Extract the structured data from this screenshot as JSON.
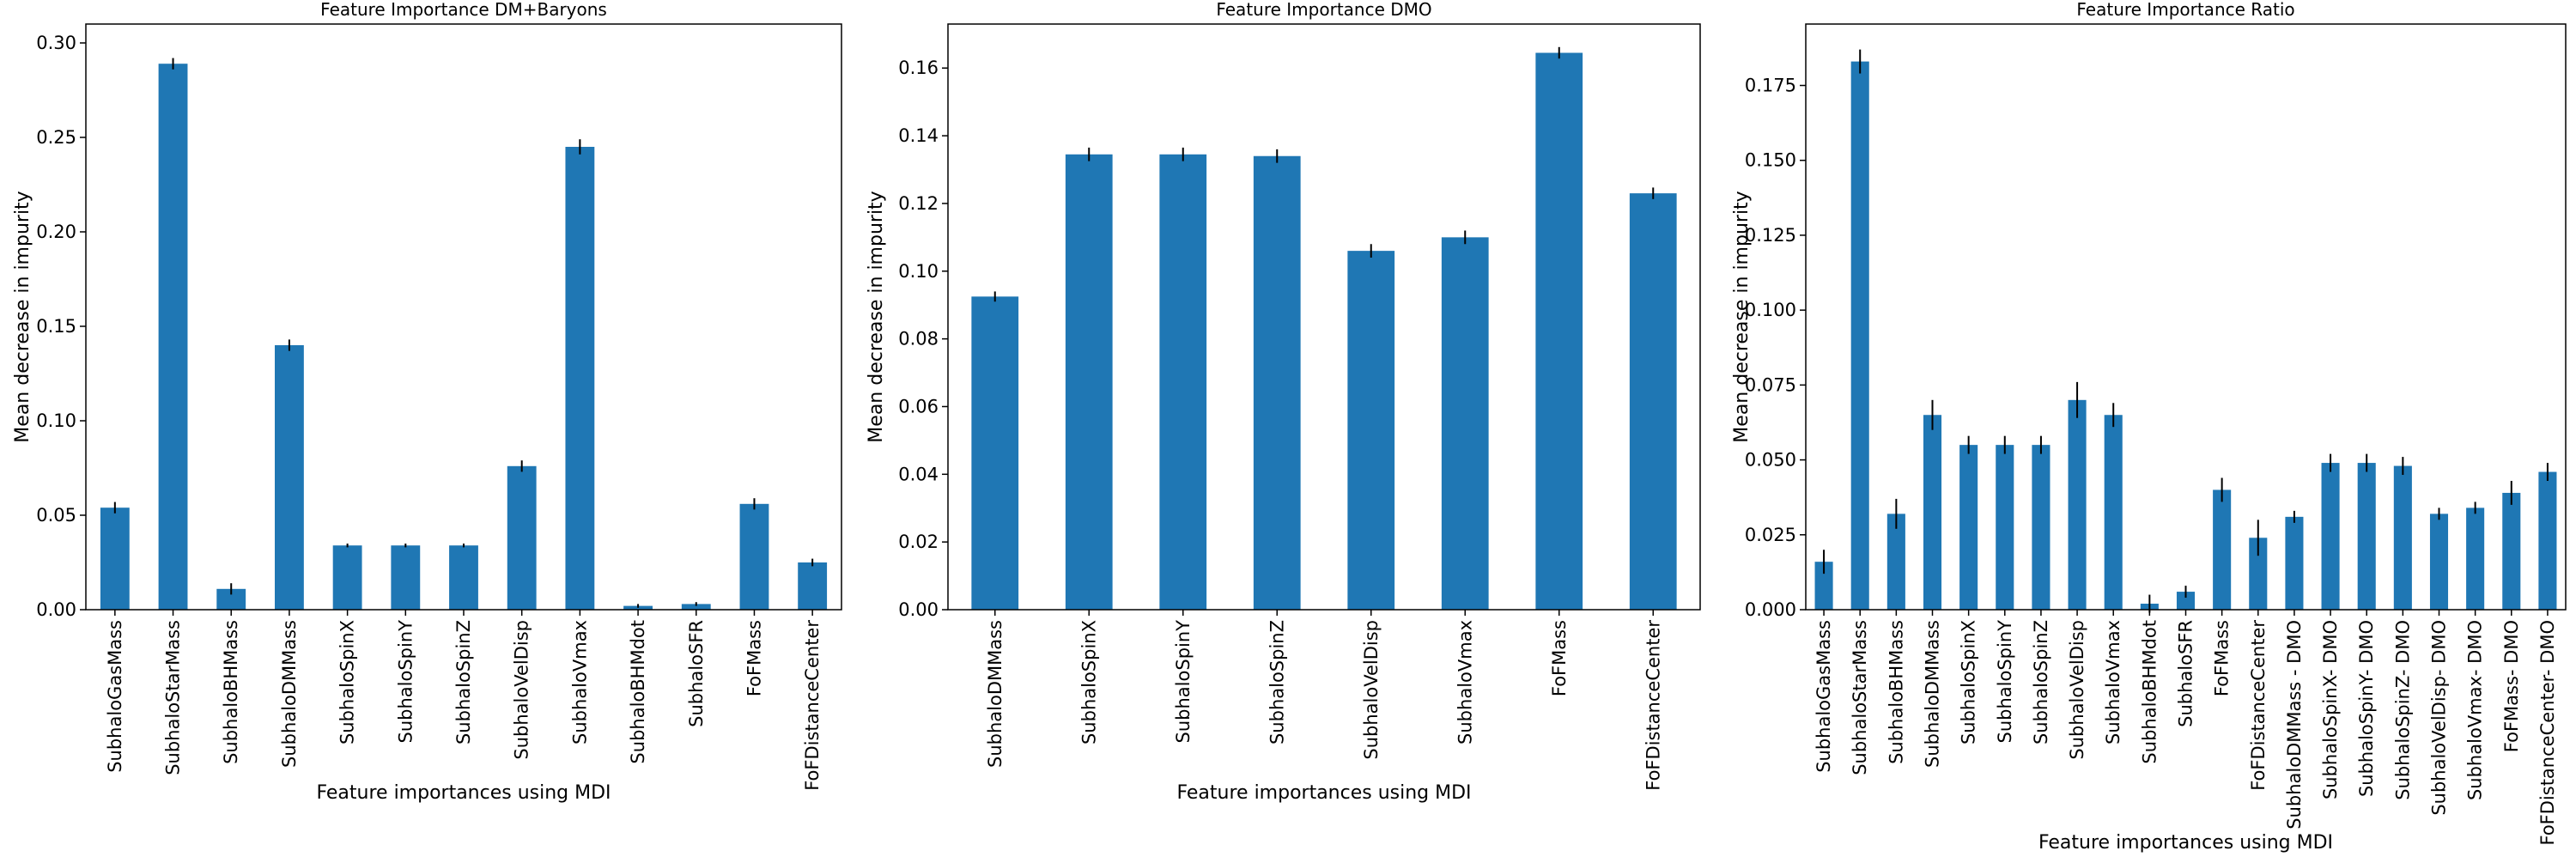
{
  "colors": {
    "bar": "#1f77b4",
    "error": "#000000",
    "axis": "#000000"
  },
  "chart_data": [
    {
      "type": "bar",
      "title": "Feature Importance DM+Baryons",
      "xlabel": "Feature importances using MDI",
      "ylabel": "Mean decrease in impurity",
      "ylim": [
        0,
        0.31
      ],
      "yticks": [
        0.0,
        0.05,
        0.1,
        0.15,
        0.2,
        0.25,
        0.3
      ],
      "ytick_labels": [
        "0.00",
        "0.05",
        "0.10",
        "0.15",
        "0.20",
        "0.25",
        "0.30"
      ],
      "grid": false,
      "categories": [
        "SubhaloGasMass",
        "SubhaloStarMass",
        "SubhaloBHMass",
        "SubhaloDMMass",
        "SubhaloSpinX",
        "SubhaloSpinY",
        "SubhaloSpinZ",
        "SubhaloVelDisp",
        "SubhaloVmax",
        "SubhaloBHMdot",
        "SubhaloSFR",
        "FoFMass",
        "FoFDistanceCenter"
      ],
      "values": [
        0.054,
        0.289,
        0.011,
        0.14,
        0.034,
        0.034,
        0.034,
        0.076,
        0.245,
        0.002,
        0.003,
        0.056,
        0.025
      ],
      "errors": [
        0.003,
        0.003,
        0.003,
        0.003,
        0.001,
        0.001,
        0.001,
        0.003,
        0.004,
        0.001,
        0.001,
        0.003,
        0.002
      ]
    },
    {
      "type": "bar",
      "title": "Feature Importance DMO",
      "xlabel": "Feature importances using MDI",
      "ylabel": "Mean decrease in impurity",
      "ylim": [
        0,
        0.173
      ],
      "yticks": [
        0.0,
        0.02,
        0.04,
        0.06,
        0.08,
        0.1,
        0.12,
        0.14,
        0.16
      ],
      "ytick_labels": [
        "0.00",
        "0.02",
        "0.04",
        "0.06",
        "0.08",
        "0.10",
        "0.12",
        "0.14",
        "0.16"
      ],
      "grid": false,
      "categories": [
        "SubhaloDMMass",
        "SubhaloSpinX",
        "SubhaloSpinY",
        "SubhaloSpinZ",
        "SubhaloVelDisp",
        "SubhaloVmax",
        "FoFMass",
        "FoFDistanceCenter"
      ],
      "values": [
        0.0925,
        0.1345,
        0.1345,
        0.134,
        0.106,
        0.11,
        0.1645,
        0.123
      ],
      "errors": [
        0.0015,
        0.002,
        0.002,
        0.002,
        0.002,
        0.002,
        0.0017,
        0.0017
      ]
    },
    {
      "type": "bar",
      "title": "Feature Importance Ratio",
      "xlabel": "Feature importances using MDI",
      "ylabel": "Mean decrease in impurity",
      "ylim": [
        0,
        0.1955
      ],
      "yticks": [
        0.0,
        0.025,
        0.05,
        0.075,
        0.1,
        0.125,
        0.15,
        0.175
      ],
      "ytick_labels": [
        "0.000",
        "0.025",
        "0.050",
        "0.075",
        "0.100",
        "0.125",
        "0.150",
        "0.175"
      ],
      "grid": false,
      "categories": [
        "SubhaloGasMass",
        "SubhaloStarMass",
        "SubhaloBHMass",
        "SubhaloDMMass",
        "SubhaloSpinX",
        "SubhaloSpinY",
        "SubhaloSpinZ",
        "SubhaloVelDisp",
        "SubhaloVmax",
        "SubhaloBHMdot",
        "SubhaloSFR",
        "FoFMass",
        "FoFDistanceCenter",
        "SubhaloDMMass - DMO",
        "SubhaloSpinX- DMO",
        "SubhaloSpinY- DMO",
        "SubhaloSpinZ- DMO",
        "SubhaloVelDisp- DMO",
        "SubhaloVmax- DMO",
        "FoFMass- DMO",
        "FoFDistanceCenter- DMO"
      ],
      "values": [
        0.016,
        0.183,
        0.032,
        0.065,
        0.055,
        0.055,
        0.055,
        0.07,
        0.065,
        0.002,
        0.006,
        0.04,
        0.024,
        0.031,
        0.049,
        0.049,
        0.048,
        0.032,
        0.034,
        0.039,
        0.046
      ],
      "errors": [
        0.004,
        0.004,
        0.005,
        0.005,
        0.003,
        0.003,
        0.003,
        0.006,
        0.004,
        0.003,
        0.002,
        0.004,
        0.006,
        0.002,
        0.003,
        0.003,
        0.003,
        0.002,
        0.002,
        0.004,
        0.003
      ]
    }
  ]
}
